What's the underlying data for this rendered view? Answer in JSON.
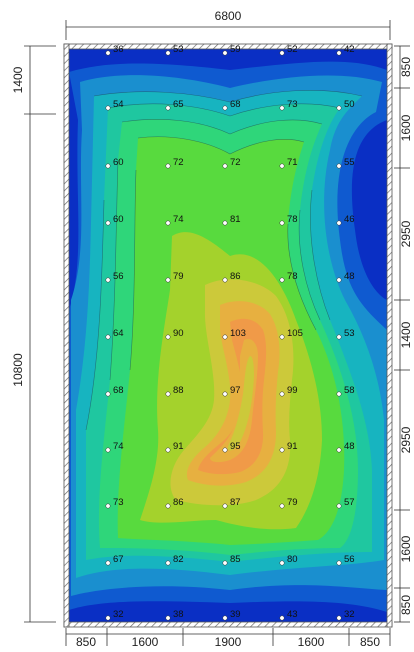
{
  "dimensions": {
    "top_total": "6800",
    "left_total": "10800",
    "left_top": "1400",
    "bottom": [
      "850",
      "1600",
      "1900",
      "1600",
      "850"
    ],
    "right": [
      "850",
      "1600",
      "2950",
      "1400",
      "2950",
      "1600",
      "850"
    ]
  },
  "grid_values": [
    [
      "36",
      "53",
      "59",
      "52",
      "42"
    ],
    [
      "54",
      "65",
      "68",
      "73",
      "50"
    ],
    [
      "60",
      "72",
      "72",
      "71",
      "55"
    ],
    [
      "60",
      "74",
      "81",
      "78",
      "46"
    ],
    [
      "56",
      "79",
      "86",
      "78",
      "48"
    ],
    [
      "64",
      "90",
      "103",
      "105",
      "53"
    ],
    [
      "68",
      "88",
      "97",
      "99",
      "58"
    ],
    [
      "74",
      "91",
      "95",
      "91",
      "48"
    ],
    [
      "73",
      "86",
      "87",
      "79",
      "57"
    ],
    [
      "67",
      "82",
      "85",
      "80",
      "56"
    ],
    [
      "32",
      "38",
      "39",
      "43",
      "32"
    ]
  ],
  "colors": {
    "frame_hatch": "#6b6b6b",
    "levels": [
      "#0a2fc4",
      "#0f5ad0",
      "#1a8fcf",
      "#17b4c0",
      "#1fc7a0",
      "#2fd67a",
      "#58da3e",
      "#a4d22c",
      "#ccc93a",
      "#e7b040",
      "#f09a48"
    ]
  }
}
